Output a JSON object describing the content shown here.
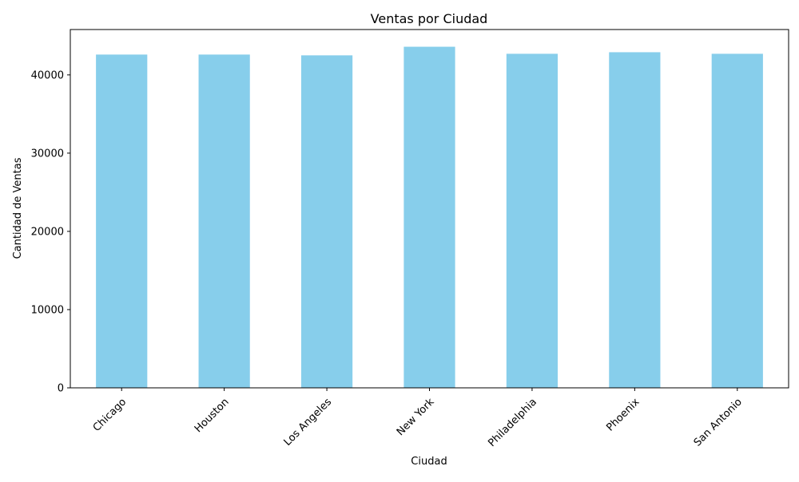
{
  "chart_data": {
    "type": "bar",
    "title": "Ventas por Ciudad",
    "xlabel": "Ciudad",
    "ylabel": "Cantidad de Ventas",
    "categories": [
      "Chicago",
      "Houston",
      "Los Angeles",
      "New York",
      "Philadelphia",
      "Phoenix",
      "San Antonio"
    ],
    "values": [
      42600,
      42600,
      42500,
      43600,
      42700,
      42900,
      42700
    ],
    "ylim": [
      0,
      45800
    ],
    "yticks": [
      0,
      10000,
      20000,
      30000,
      40000
    ],
    "ytick_labels": [
      "0",
      "10000",
      "20000",
      "30000",
      "40000"
    ],
    "bar_color": "#87ceeb",
    "grid": false,
    "legend": "none"
  }
}
